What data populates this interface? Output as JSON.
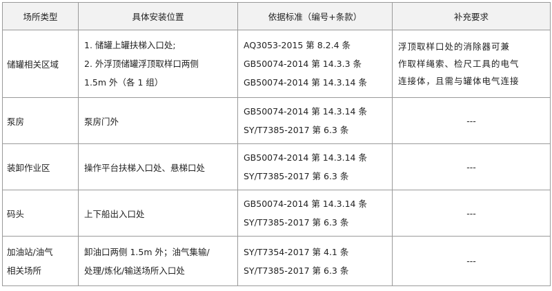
{
  "headers": [
    "场所类型",
    "具体安装位置",
    "依据标准（编号+条款）",
    "补充要求"
  ],
  "rows": [
    {
      "type": "储罐相关区域",
      "location": [
        "1. 储罐上罐扶梯入口处;",
        "2. 外浮顶储罐浮顶取样口两侧",
        "1.5m 外（各 1 组）"
      ],
      "standards": [
        "AQ3053-2015 第 8.2.4 条",
        "GB50074-2014 第 14.3.3 条",
        "GB50074-2014 第 14.3.14 条"
      ],
      "requirement": [
        "浮顶取样口处的消除器可兼",
        "作取样绳索、检尺工具的电气",
        "连接体，且需与罐体电气连接"
      ]
    },
    {
      "type": "泵房",
      "location": [
        "泵房门外"
      ],
      "standards": [
        "GB50074-2014 第 14.3.14 条",
        "SY/T7385-2017 第 6.3 条"
      ],
      "requirement": [
        "---"
      ]
    },
    {
      "type": "装卸作业区",
      "location": [
        "操作平台扶梯入口处、悬梯口处"
      ],
      "standards": [
        "GB50074-2014 第 14.3.14 条",
        "SY/T7385-2017 第 6.3 条"
      ],
      "requirement": [
        "---"
      ]
    },
    {
      "type": "码头",
      "location": [
        "上下船出入口处"
      ],
      "standards": [
        "GB50074-2014 第 14.3.14 条",
        "SY/T7385-2017 第 6.3 条"
      ],
      "requirement": [
        "---"
      ]
    },
    {
      "type": [
        "加油站/油气",
        "相关场所"
      ],
      "location": [
        "卸油口两侧 1.5m 外；油气集输/",
        "处理/炼化/输送场所入口处"
      ],
      "standards": [
        "SY/T7354-2017 第 4.1 条",
        "SY/T7385-2017 第 6.3 条"
      ],
      "requirement": [
        "---"
      ]
    }
  ]
}
